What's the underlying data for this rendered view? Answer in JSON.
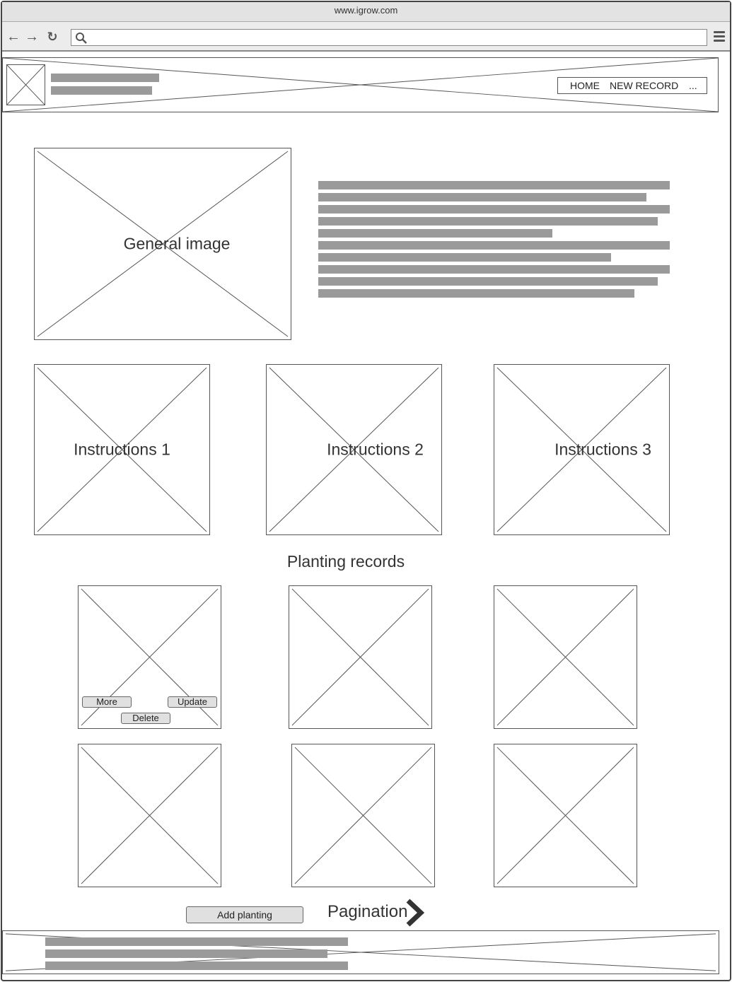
{
  "browser": {
    "url_title": "www.igrow.com",
    "search_value": ""
  },
  "header": {
    "nav_home": "HOME",
    "nav_new_record": "NEW RECORD",
    "nav_more": "..."
  },
  "hero": {
    "image_label": "General image"
  },
  "instructions": [
    {
      "label": "Instructions 1"
    },
    {
      "label": "Instructions 2"
    },
    {
      "label": "Instructions 3"
    }
  ],
  "records": {
    "title": "Planting records",
    "more_label": "More",
    "update_label": "Update",
    "delete_label": "Delete"
  },
  "actions": {
    "add_planting_label": "Add planting",
    "pagination_label": "Pagination"
  },
  "colors": {
    "placeholder_bar": "#9a9a9a",
    "border": "#555555",
    "button_bg": "#e0e0e0"
  }
}
